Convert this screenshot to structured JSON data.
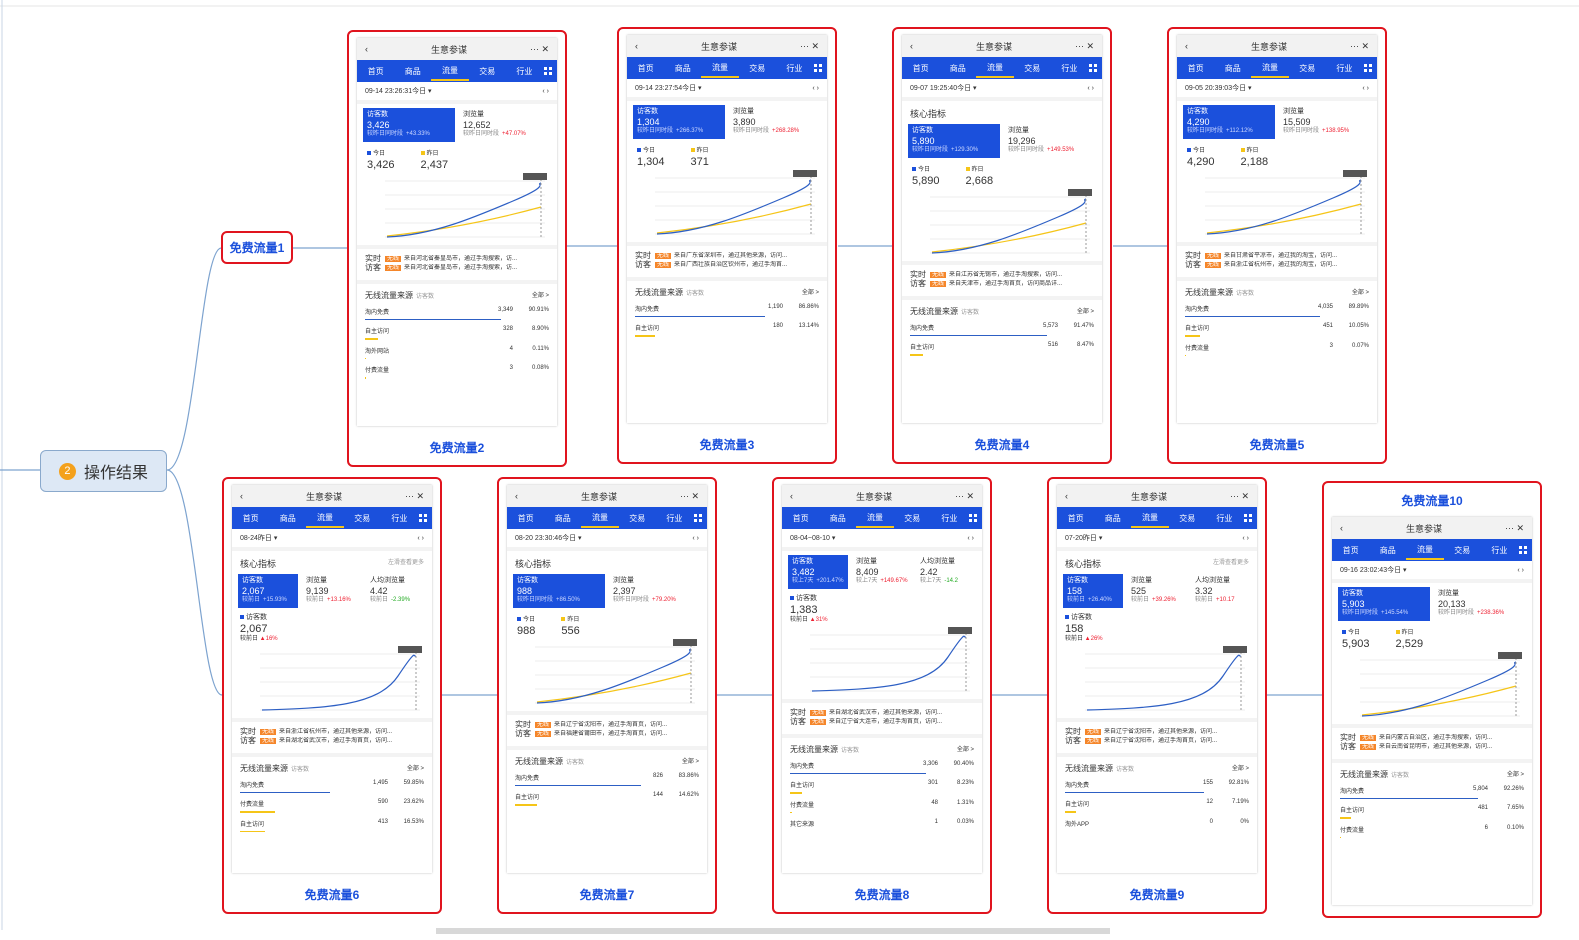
{
  "common": {
    "app_title": "生意参谋",
    "tabs": [
      "首页",
      "商品",
      "流量",
      "交易",
      "行业"
    ],
    "today": "今日",
    "yesterday": "昨日",
    "realtime": "实时访客",
    "source_title": "无线流量来源",
    "source_unit": "访客数",
    "all": "全部 >",
    "tag": "无线"
  },
  "root": {
    "num": "2",
    "label": "操作结果"
  },
  "node1": "免费流量1",
  "cards": [
    {
      "label": "免费流量2",
      "date": "09-14 23:26:31今日",
      "metrics": [
        {
          "name": "访客数",
          "value": "3,426",
          "note": "较昨日同时段",
          "change": "+43.33%"
        },
        {
          "name": "浏览量",
          "value": "12,652",
          "note": "较昨日同时段",
          "change": "+47.07%"
        }
      ],
      "today": "3,426",
      "yesterday": "2,437",
      "realtime": [
        "来自河北省秦皇岛市，通过手淘搜索，访...",
        "来自河北省秦皇岛市，通过手淘搜索，访..."
      ],
      "sources": [
        [
          "淘内免费",
          "3,349",
          "90.91%"
        ],
        [
          "自主访问",
          "328",
          "8.90%"
        ],
        [
          "淘外网站",
          "4",
          "0.11%"
        ],
        [
          "付费流量",
          "3",
          "0.08%"
        ]
      ]
    },
    {
      "label": "免费流量3",
      "date": "09-14 23:27:54今日",
      "metrics": [
        {
          "name": "访客数",
          "value": "1,304",
          "note": "较昨日同时段",
          "change": "+266.37%"
        },
        {
          "name": "浏览量",
          "value": "3,890",
          "note": "较昨日同时段",
          "change": "+268.28%"
        }
      ],
      "today": "1,304",
      "yesterday": "371",
      "realtime": [
        "来自广东省深圳市，通过其他来源，访问...",
        "来自广西壮族自治区钦州市，通过手淘首..."
      ],
      "sources": [
        [
          "淘内免费",
          "1,190",
          "86.86%"
        ],
        [
          "自主访问",
          "180",
          "13.14%"
        ]
      ]
    },
    {
      "label": "免费流量4",
      "date": "09-07 19:25:40今日",
      "core": "核心指标",
      "metrics": [
        {
          "name": "访客数",
          "value": "5,890",
          "note": "较昨日同时段",
          "change": "+129.30%"
        },
        {
          "name": "浏览量",
          "value": "19,296",
          "note": "较昨日同时段",
          "change": "+149.53%"
        }
      ],
      "today": "5,890",
      "yesterday": "2,668",
      "realtime": [
        "来自江苏省无锡市，通过手淘搜索，访问...",
        "来自天津市，通过手淘首页，访问商品详..."
      ],
      "sources": [
        [
          "淘内免费",
          "5,573",
          "91.47%"
        ],
        [
          "自主访问",
          "516",
          "8.47%"
        ]
      ]
    },
    {
      "label": "免费流量5",
      "date": "09-05 20:39:03今日",
      "metrics": [
        {
          "name": "访客数",
          "value": "4,290",
          "note": "较昨日同时段",
          "change": "+112.12%"
        },
        {
          "name": "浏览量",
          "value": "15,509",
          "note": "较昨日同时段",
          "change": "+138.95%"
        }
      ],
      "today": "4,290",
      "yesterday": "2,188",
      "realtime": [
        "来自甘肃省平凉市，通过我的淘宝，访问...",
        "来自浙江省杭州市，通过我的淘宝，访问..."
      ],
      "sources": [
        [
          "淘内免费",
          "4,035",
          "89.89%"
        ],
        [
          "自主访问",
          "451",
          "10.05%"
        ],
        [
          "付费流量",
          "3",
          "0.07%"
        ]
      ]
    },
    {
      "label": "免费流量6",
      "date": "08-24昨日",
      "core": "核心指标",
      "more": "左滑查看更多",
      "metrics": [
        {
          "name": "访客数",
          "value": "2,067",
          "note": "较前日",
          "change": "+15.93%"
        },
        {
          "name": "浏览量",
          "value": "9,139",
          "note": "较前日",
          "change": "+13.16%"
        },
        {
          "name": "人均浏览量",
          "value": "4.42",
          "note": "较前日",
          "change": "-2.39%"
        }
      ],
      "visitor": {
        "name": "访客数",
        "value": "2,067",
        "note": "较前日",
        "change": "16%"
      },
      "realtime": [
        "来自浙江省杭州市，通过其他来源，访问...",
        "来自湖北省武汉市，通过手淘首页，访问..."
      ],
      "sources": [
        [
          "淘内免费",
          "1,495",
          "59.85%"
        ],
        [
          "付费流量",
          "590",
          "23.62%"
        ],
        [
          "自主访问",
          "413",
          "16.53%"
        ]
      ]
    },
    {
      "label": "免费流量7",
      "date": "08-20 23:30:46今日",
      "core": "核心指标",
      "metrics": [
        {
          "name": "访客数",
          "value": "988",
          "note": "较昨日同时段",
          "change": "+86.50%"
        },
        {
          "name": "浏览量",
          "value": "2,397",
          "note": "较昨日同时段",
          "change": "+79.20%"
        }
      ],
      "today": "988",
      "yesterday": "556",
      "realtime": [
        "来自辽宁省沈阳市，通过手淘首页，访问...",
        "来自福建省莆田市，通过手淘首页，访问..."
      ],
      "sources": [
        [
          "淘内免费",
          "826",
          "83.86%"
        ],
        [
          "自主访问",
          "144",
          "14.62%"
        ]
      ]
    },
    {
      "label": "免费流量8",
      "date": "08-04~08-10",
      "metrics": [
        {
          "name": "访客数",
          "value": "3,482",
          "note": "较上7天",
          "change": "+201.47%"
        },
        {
          "name": "浏览量",
          "value": "8,409",
          "note": "较上7天",
          "change": "+149.67%"
        },
        {
          "name": "人均浏览量",
          "value": "2.42",
          "note": "较上7天",
          "change": "-14.2"
        }
      ],
      "visitor": {
        "name": "访客数",
        "value": "1,383",
        "note": "较前日",
        "change": "31%"
      },
      "realtime": [
        "来自湖北省武汉市，通过其他来源，访问...",
        "来自辽宁省大连市，通过手淘首页，访问..."
      ],
      "sources": [
        [
          "淘内免费",
          "3,306",
          "90.40%"
        ],
        [
          "自主访问",
          "301",
          "8.23%"
        ],
        [
          "付费流量",
          "48",
          "1.31%"
        ],
        [
          "其它来源",
          "1",
          "0.03%"
        ]
      ]
    },
    {
      "label": "免费流量9",
      "date": "07-20昨日",
      "core": "核心指标",
      "more": "左滑查看更多",
      "metrics": [
        {
          "name": "访客数",
          "value": "158",
          "note": "较前日",
          "change": "+26.40%"
        },
        {
          "name": "浏览量",
          "value": "525",
          "note": "较前日",
          "change": "+39.26%"
        },
        {
          "name": "人均浏览量",
          "value": "3.32",
          "note": "较前日",
          "change": "+10.17"
        }
      ],
      "visitor": {
        "name": "访客数",
        "value": "158",
        "note": "较前日",
        "change": "26%"
      },
      "realtime": [
        "来自辽宁省沈阳市，通过其他来源，访问...",
        "来自辽宁省沈阳市，通过手淘首页，访问..."
      ],
      "sources": [
        [
          "淘内免费",
          "155",
          "92.81%"
        ],
        [
          "自主访问",
          "12",
          "7.19%"
        ],
        [
          "淘外APP",
          "0",
          "0%"
        ]
      ]
    },
    {
      "label": "免费流量10",
      "date": "09-16 23:02:43今日",
      "metrics": [
        {
          "name": "访客数",
          "value": "5,903",
          "note": "较昨日同时段",
          "change": "+145.54%"
        },
        {
          "name": "浏览量",
          "value": "20,133",
          "note": "较昨日同时段",
          "change": "+238.36%"
        }
      ],
      "today": "5,903",
      "yesterday": "2,529",
      "realtime": [
        "来自内蒙古自治区，通过手淘搜索，访问...",
        "来自云南省昆明市，通过其他来源，访问..."
      ],
      "sources": [
        [
          "淘内免费",
          "5,804",
          "92.26%"
        ],
        [
          "自主访问",
          "481",
          "7.65%"
        ],
        [
          "付费流量",
          "6",
          "0.10%"
        ]
      ]
    }
  ]
}
